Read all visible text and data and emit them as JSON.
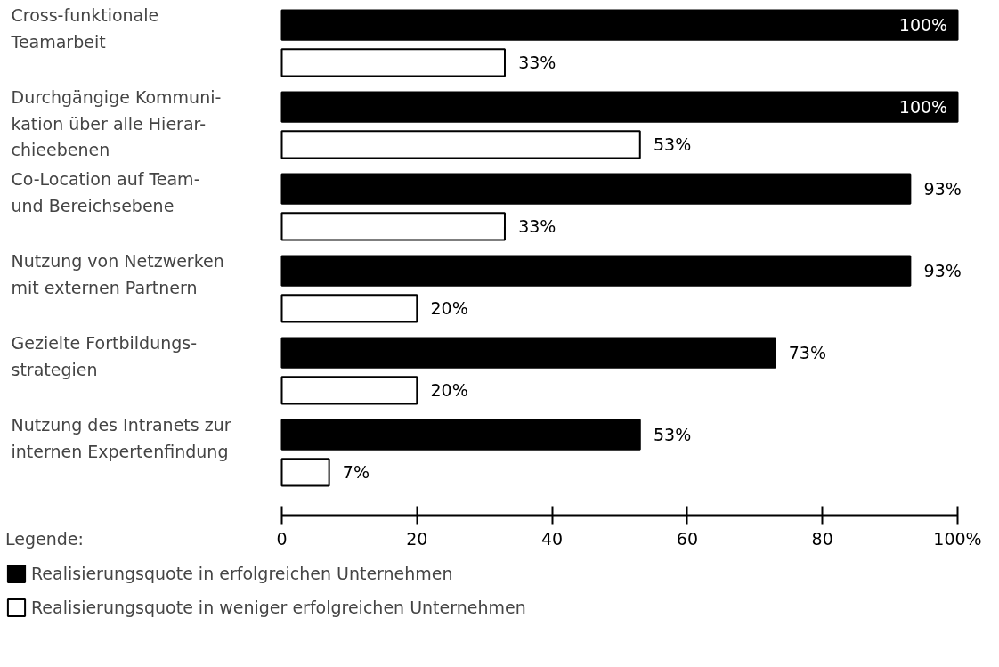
{
  "chart_data": {
    "type": "bar",
    "orientation": "horizontal",
    "categories": [
      "Cross-funktionale\nTeamarbeit",
      "Durchgängige Kommuni-\nkation über alle Hierar-\nchieebenen",
      "Co-Location auf Team-\nund Bereichsebene",
      "Nutzung von Netzwerken\nmit externen Partnern",
      "Gezielte Fortbildungs-\nstrategien",
      "Nutzung des Intranets zur\ninternen Expertenfindung"
    ],
    "series": [
      {
        "name": "Realisierungsquote in erfolgreichen Unternehmen",
        "color": "#000000",
        "values": [
          100,
          100,
          93,
          93,
          73,
          53
        ],
        "value_labels": [
          "100%",
          "100%",
          "93%",
          "93%",
          "73%",
          "53%"
        ]
      },
      {
        "name": "Realisierungsquote in weniger erfolgreichen Unternehmen",
        "color": "#ffffff",
        "values": [
          33,
          53,
          33,
          20,
          20,
          7
        ],
        "value_labels": [
          "33%",
          "53%",
          "33%",
          "20%",
          "20%",
          "7%"
        ]
      }
    ],
    "xlim": [
      0,
      100
    ],
    "xticks": [
      0,
      20,
      40,
      60,
      80,
      {
        "value": 100,
        "label": "100%"
      }
    ],
    "grid": false,
    "legend": "bottom",
    "legend_title": "Legende:"
  }
}
